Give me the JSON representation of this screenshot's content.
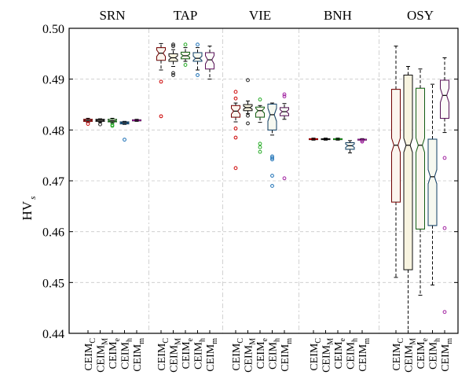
{
  "chart_data": {
    "type": "boxplot",
    "ylabel": "HV",
    "ylabel_subscript": "s",
    "ylim": [
      0.44,
      0.5
    ],
    "yticks": [
      "0.44",
      "0.45",
      "0.46",
      "0.47",
      "0.48",
      "0.49",
      "0.50"
    ],
    "grid": true,
    "notched": true,
    "series_colors": [
      "#cc0000",
      "#1a1a1a",
      "#22aa22",
      "#1a6fb5",
      "#a020a0"
    ],
    "box_fills": [
      "#fbf5ee",
      "#f8f4e0",
      "#fbf5ee",
      "#f6f8f0",
      "#fbfbf8"
    ],
    "groups": [
      {
        "name": "SRN",
        "boxes": [
          {
            "label": "CEIM",
            "sub": "C",
            "whislo": 0.4815,
            "q1": 0.4817,
            "med": 0.4819,
            "q3": 0.4821,
            "whishi": 0.4823,
            "fliers": [
              0.4812
            ]
          },
          {
            "label": "CEIM",
            "sub": "M",
            "whislo": 0.4815,
            "q1": 0.4817,
            "med": 0.4819,
            "q3": 0.4821,
            "whishi": 0.4822,
            "fliers": [
              0.4811
            ]
          },
          {
            "label": "CEIM",
            "sub": "e",
            "whislo": 0.4814,
            "q1": 0.4816,
            "med": 0.4818,
            "q3": 0.4821,
            "whishi": 0.4823,
            "fliers": [
              0.481,
              0.4808
            ]
          },
          {
            "label": "CEIM",
            "sub": "h",
            "whislo": 0.4811,
            "q1": 0.4812,
            "med": 0.4814,
            "q3": 0.4816,
            "whishi": 0.4817,
            "fliers": [
              0.4781
            ]
          },
          {
            "label": "CEIM",
            "sub": "m",
            "whislo": 0.4817,
            "q1": 0.4818,
            "med": 0.4819,
            "q3": 0.482,
            "whishi": 0.4821,
            "fliers": []
          }
        ]
      },
      {
        "name": "TAP",
        "boxes": [
          {
            "label": "CEIM",
            "sub": "C",
            "whislo": 0.4918,
            "q1": 0.4937,
            "med": 0.4951,
            "q3": 0.4962,
            "whishi": 0.497,
            "fliers": [
              0.4895,
              0.4827
            ]
          },
          {
            "label": "CEIM",
            "sub": "M",
            "whislo": 0.4925,
            "q1": 0.4935,
            "med": 0.4942,
            "q3": 0.495,
            "whishi": 0.4958,
            "fliers": [
              0.4968,
              0.4965,
              0.4912,
              0.4908
            ]
          },
          {
            "label": "CEIM",
            "sub": "e",
            "whislo": 0.4935,
            "q1": 0.494,
            "med": 0.4946,
            "q3": 0.4953,
            "whishi": 0.4962,
            "fliers": [
              0.4968,
              0.4928
            ]
          },
          {
            "label": "CEIM",
            "sub": "h",
            "whislo": 0.4918,
            "q1": 0.4935,
            "med": 0.4941,
            "q3": 0.4952,
            "whishi": 0.4962,
            "fliers": [
              0.4968,
              0.4908
            ]
          },
          {
            "label": "CEIM",
            "sub": "m",
            "whislo": 0.49,
            "q1": 0.492,
            "med": 0.4938,
            "q3": 0.4952,
            "whishi": 0.4965,
            "fliers": []
          }
        ]
      },
      {
        "name": "VIE",
        "boxes": [
          {
            "label": "CEIM",
            "sub": "C",
            "whislo": 0.4816,
            "q1": 0.4825,
            "med": 0.4837,
            "q3": 0.4848,
            "whishi": 0.4853,
            "fliers": [
              0.4875,
              0.4862,
              0.4803,
              0.4785,
              0.4725
            ]
          },
          {
            "label": "CEIM",
            "sub": "M",
            "whislo": 0.4832,
            "q1": 0.4838,
            "med": 0.4844,
            "q3": 0.485,
            "whishi": 0.4857,
            "fliers": [
              0.4898,
              0.4828,
              0.4813
            ]
          },
          {
            "label": "CEIM",
            "sub": "e",
            "whislo": 0.4815,
            "q1": 0.4825,
            "med": 0.4838,
            "q3": 0.4845,
            "whishi": 0.4848,
            "fliers": [
              0.486,
              0.4773,
              0.4766,
              0.4757
            ]
          },
          {
            "label": "CEIM",
            "sub": "h",
            "whislo": 0.479,
            "q1": 0.48,
            "med": 0.483,
            "q3": 0.4851,
            "whishi": 0.4853,
            "fliers": [
              0.4748,
              0.4745,
              0.4742,
              0.471,
              0.469
            ]
          },
          {
            "label": "CEIM",
            "sub": "m",
            "whislo": 0.4821,
            "q1": 0.4828,
            "med": 0.4836,
            "q3": 0.4844,
            "whishi": 0.4852,
            "fliers": [
              0.487,
              0.4866,
              0.4705
            ]
          }
        ]
      },
      {
        "name": "BNH",
        "boxes": [
          {
            "label": "CEIM",
            "sub": "C",
            "whislo": 0.478,
            "q1": 0.4781,
            "med": 0.4782,
            "q3": 0.4783,
            "whishi": 0.4784,
            "fliers": []
          },
          {
            "label": "CEIM",
            "sub": "M",
            "whislo": 0.478,
            "q1": 0.4781,
            "med": 0.4782,
            "q3": 0.4783,
            "whishi": 0.4784,
            "fliers": []
          },
          {
            "label": "CEIM",
            "sub": "e",
            "whislo": 0.478,
            "q1": 0.4781,
            "med": 0.4782,
            "q3": 0.4783,
            "whishi": 0.4784,
            "fliers": []
          },
          {
            "label": "CEIM",
            "sub": "h",
            "whislo": 0.4755,
            "q1": 0.4762,
            "med": 0.4769,
            "q3": 0.4775,
            "whishi": 0.4779,
            "fliers": []
          },
          {
            "label": "CEIM",
            "sub": "m",
            "whislo": 0.4779,
            "q1": 0.478,
            "med": 0.4781,
            "q3": 0.4782,
            "whishi": 0.4783,
            "fliers": [
              0.4779,
              0.4777
            ]
          }
        ]
      },
      {
        "name": "OSY",
        "boxes": [
          {
            "label": "CEIM",
            "sub": "C",
            "whislo": 0.451,
            "q1": 0.4658,
            "med": 0.477,
            "q3": 0.488,
            "whishi": 0.4965,
            "fliers": []
          },
          {
            "label": "CEIM",
            "sub": "M",
            "whislo": 0.44,
            "q1": 0.4525,
            "med": 0.477,
            "q3": 0.4908,
            "whishi": 0.4925,
            "fliers": []
          },
          {
            "label": "CEIM",
            "sub": "e",
            "whislo": 0.4475,
            "q1": 0.4605,
            "med": 0.477,
            "q3": 0.4882,
            "whishi": 0.492,
            "fliers": []
          },
          {
            "label": "CEIM",
            "sub": "h",
            "whislo": 0.4495,
            "q1": 0.4612,
            "med": 0.4708,
            "q3": 0.4782,
            "whishi": 0.489,
            "fliers": []
          },
          {
            "label": "CEIM",
            "sub": "m",
            "whislo": 0.4795,
            "q1": 0.4823,
            "med": 0.4868,
            "q3": 0.4898,
            "whishi": 0.4942,
            "fliers": [
              0.4745,
              0.4607,
              0.4442
            ]
          }
        ]
      }
    ]
  }
}
